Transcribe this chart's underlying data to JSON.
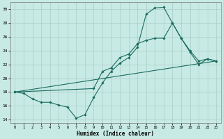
{
  "xlabel": "Humidex (Indice chaleur)",
  "ylabel": "",
  "xlim": [
    -0.5,
    23.5
  ],
  "ylim": [
    13.5,
    31.0
  ],
  "xticks": [
    0,
    1,
    2,
    3,
    4,
    5,
    6,
    7,
    8,
    9,
    10,
    11,
    12,
    13,
    14,
    15,
    16,
    17,
    18,
    19,
    20,
    21,
    22,
    23
  ],
  "yticks": [
    14,
    16,
    18,
    20,
    22,
    24,
    26,
    28,
    30
  ],
  "bg_color": "#c8eae4",
  "grid_color": "#aaccc6",
  "line_color": "#1a6b60",
  "line1_x": [
    0,
    1,
    2,
    3,
    4,
    5,
    6,
    7,
    8,
    9,
    10,
    11,
    12,
    13,
    14,
    15,
    16,
    17,
    18,
    19,
    20,
    21,
    22,
    23
  ],
  "line1_y": [
    18.0,
    17.8,
    17.0,
    16.5,
    16.5,
    16.1,
    15.8,
    14.2,
    14.7,
    17.2,
    19.3,
    21.0,
    22.2,
    23.0,
    24.5,
    29.3,
    30.2,
    30.3,
    28.0,
    25.8,
    24.0,
    22.5,
    22.8,
    22.5
  ],
  "line2_x": [
    0,
    23
  ],
  "line2_y": [
    18.0,
    22.5
  ],
  "line3_x": [
    0,
    9,
    10,
    11,
    12,
    13,
    14,
    15,
    16,
    17,
    18,
    19,
    20,
    21,
    22,
    23
  ],
  "line3_y": [
    18.0,
    18.5,
    21.0,
    21.5,
    23.0,
    23.5,
    25.0,
    25.5,
    25.8,
    25.8,
    28.0,
    25.8,
    23.8,
    22.0,
    22.8,
    22.5
  ]
}
